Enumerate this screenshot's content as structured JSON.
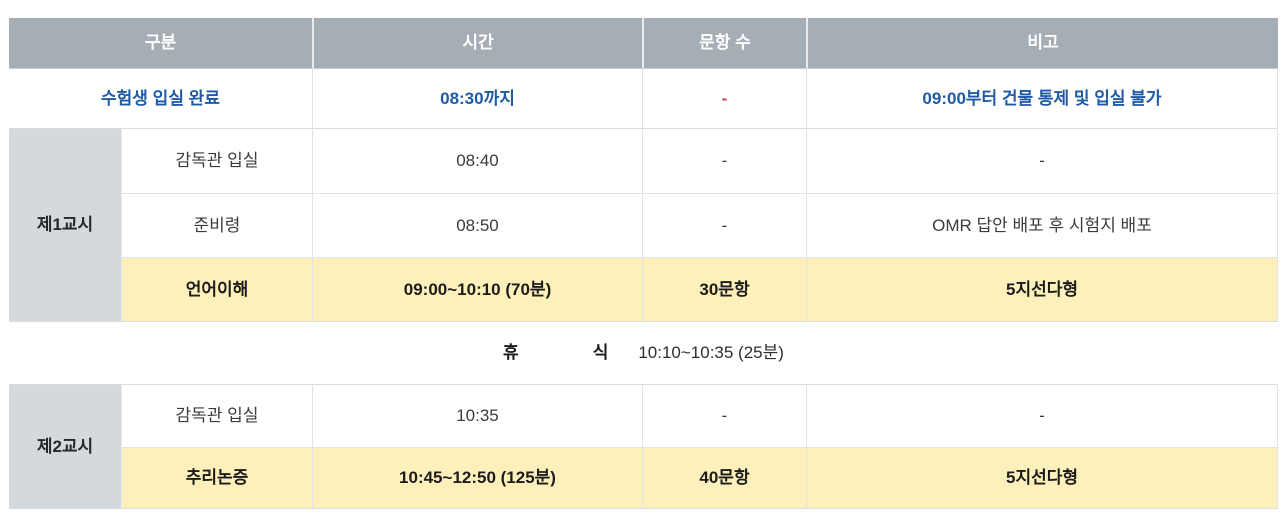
{
  "header": {
    "col_category": "구분",
    "col_time": "시간",
    "col_count": "문항 수",
    "col_note": "비고"
  },
  "entry_row": {
    "label": "수험생 입실 완료",
    "time": "08:30까지",
    "count": "-",
    "note": "09:00부터 건물 통제 및 입실 불가"
  },
  "session1": {
    "group_label": "제1교시",
    "rows": [
      {
        "label": "감독관 입실",
        "time": "08:40",
        "count": "-",
        "note": "-"
      },
      {
        "label": "준비령",
        "time": "08:50",
        "count": "-",
        "note": "OMR 답안 배포 후 시험지 배포"
      },
      {
        "label": "언어이해",
        "time": "09:00~10:10 (70분)",
        "count": "30문항",
        "note": "5지선다형",
        "highlight": true
      }
    ]
  },
  "break_row": {
    "word1": "휴",
    "word2": "식",
    "time": "10:10~10:35 (25분)"
  },
  "session2": {
    "group_label": "제2교시",
    "rows": [
      {
        "label": "감독관 입실",
        "time": "10:35",
        "count": "-",
        "note": "-"
      },
      {
        "label": "추리논증",
        "time": "10:45~12:50 (125분)",
        "count": "40문항",
        "note": "5지선다형",
        "highlight": true
      }
    ]
  },
  "colors": {
    "header_bg": "#a6aeb5",
    "sidebar_bg": "#d4d9dd",
    "highlight_bg": "#fdf0ba",
    "accent_blue": "#1f5aa5",
    "accent_red": "#d13a4f"
  }
}
